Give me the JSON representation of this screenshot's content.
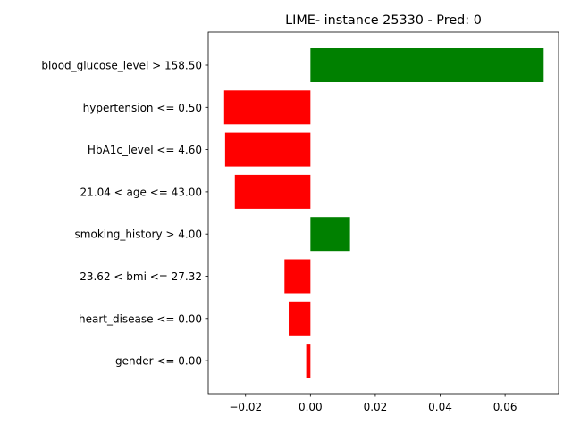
{
  "chart_data": {
    "type": "bar",
    "orientation": "horizontal",
    "title": "LIME- instance 25330 - Pred: 0",
    "xlabel": "",
    "ylabel": "",
    "xlim": [
      -0.0315,
      0.0765
    ],
    "xticks": [
      -0.02,
      0.0,
      0.02,
      0.04,
      0.06
    ],
    "xtick_labels": [
      "−0.02",
      "0.00",
      "0.02",
      "0.04",
      "0.06"
    ],
    "grid": false,
    "legend": "none",
    "positive_color": "#008000",
    "negative_color": "#ff0000",
    "categories": [
      "blood_glucose_level > 158.50",
      "hypertension <= 0.50",
      "HbA1c_level <= 4.60",
      "21.04 < age <= 43.00",
      "smoking_history > 4.00",
      "23.62 < bmi <= 27.32",
      "heart_disease <= 0.00",
      "gender <= 0.00"
    ],
    "values": [
      0.0719,
      -0.0266,
      -0.0263,
      -0.0233,
      0.0122,
      -0.008,
      -0.0067,
      -0.0013
    ]
  }
}
